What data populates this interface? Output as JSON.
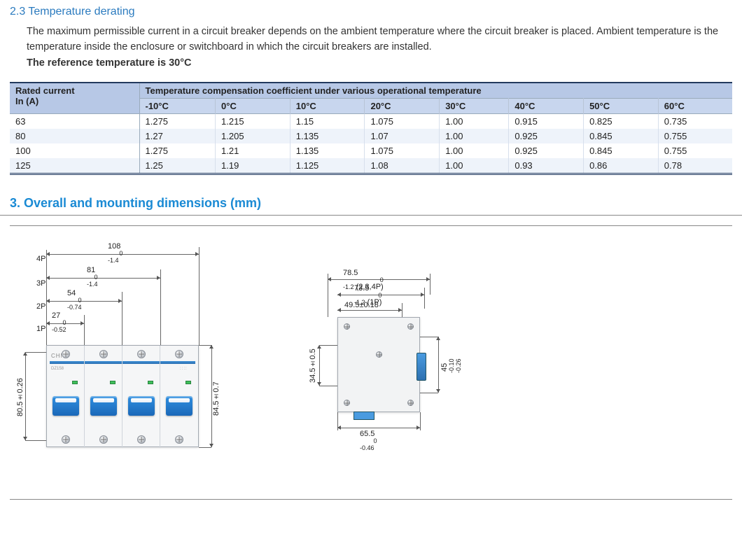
{
  "section23": {
    "heading": "2.3 Temperature derating",
    "paragraph": "The maximum permissible current in a circuit breaker depends on the ambient temperature where the circuit breaker is placed. Ambient temperature is the temperature inside the enclosure or switchboard in which the circuit breakers are installed.",
    "bold_line": "The reference temperature is 30°C"
  },
  "table": {
    "rated_header_l1": "Rated current",
    "rated_header_l2": "In (A)",
    "span_header": "Temperature compensation coefficient under various operational temperature",
    "temps": [
      "-10°C",
      "0°C",
      "10°C",
      "20°C",
      "30°C",
      "40°C",
      "50°C",
      "60°C"
    ],
    "rows": [
      {
        "rated": "63",
        "vals": [
          "1.275",
          "1.215",
          "1.15",
          "1.075",
          "1.00",
          "0.915",
          "0.825",
          "0.735"
        ]
      },
      {
        "rated": "80",
        "vals": [
          "1.27",
          "1.205",
          "1.135",
          "1.07",
          "1.00",
          "0.925",
          "0.845",
          "0.755"
        ]
      },
      {
        "rated": "100",
        "vals": [
          "1.275",
          "1.21",
          "1.135",
          "1.075",
          "1.00",
          "0.925",
          "0.845",
          "0.755"
        ]
      },
      {
        "rated": "125",
        "vals": [
          "1.25",
          "1.19",
          "1.125",
          "1.08",
          "1.00",
          "0.93",
          "0.86",
          "0.78"
        ]
      }
    ],
    "header_bg1": "#b7c8e6",
    "header_bg2": "#c8d6ee",
    "row_alt_bg": "#eef3fa",
    "border_color": "#223a5e"
  },
  "section3": {
    "heading": "3. Overall and mounting dimensions (mm)"
  },
  "front": {
    "p4": "4P",
    "p3": "3P",
    "p2": "2P",
    "p1": "1P",
    "w108": "108",
    "w108_tol_u": "0",
    "w108_tol_l": "-1.4",
    "w81": "81",
    "w81_tol_u": "0",
    "w81_tol_l": "-1.4",
    "w54": "54",
    "w54_tol_u": "0",
    "w54_tol_l": "-0.74",
    "w27": "27",
    "w27_tol_u": "0",
    "w27_tol_l": "-0.52",
    "h_left": "80.5±0.26",
    "h_right": "84.5±0.7",
    "brand": "CHNT"
  },
  "side": {
    "d785": "78.5",
    "d785_tol_u": "0",
    "d785_tol_l": "-1.2",
    "d785_note": "(2,3,4P)",
    "d735": "73.5",
    "d735_tol_u": "0",
    "d735_tol_l": "-1.2",
    "d735_note": "(1P)",
    "d495": "49.5±0.18",
    "d345": "34.5±0.5",
    "d45": "45",
    "d45_tol_u": "-0.10",
    "d45_tol_l": "-0.26",
    "d655": "65.5",
    "d655_tol_u": "0",
    "d655_tol_l": "-0.46"
  },
  "colors": {
    "heading_blue": "#1a8ad4",
    "toggle_blue": "#2f8fe0",
    "text": "#222222",
    "bg": "#ffffff"
  }
}
